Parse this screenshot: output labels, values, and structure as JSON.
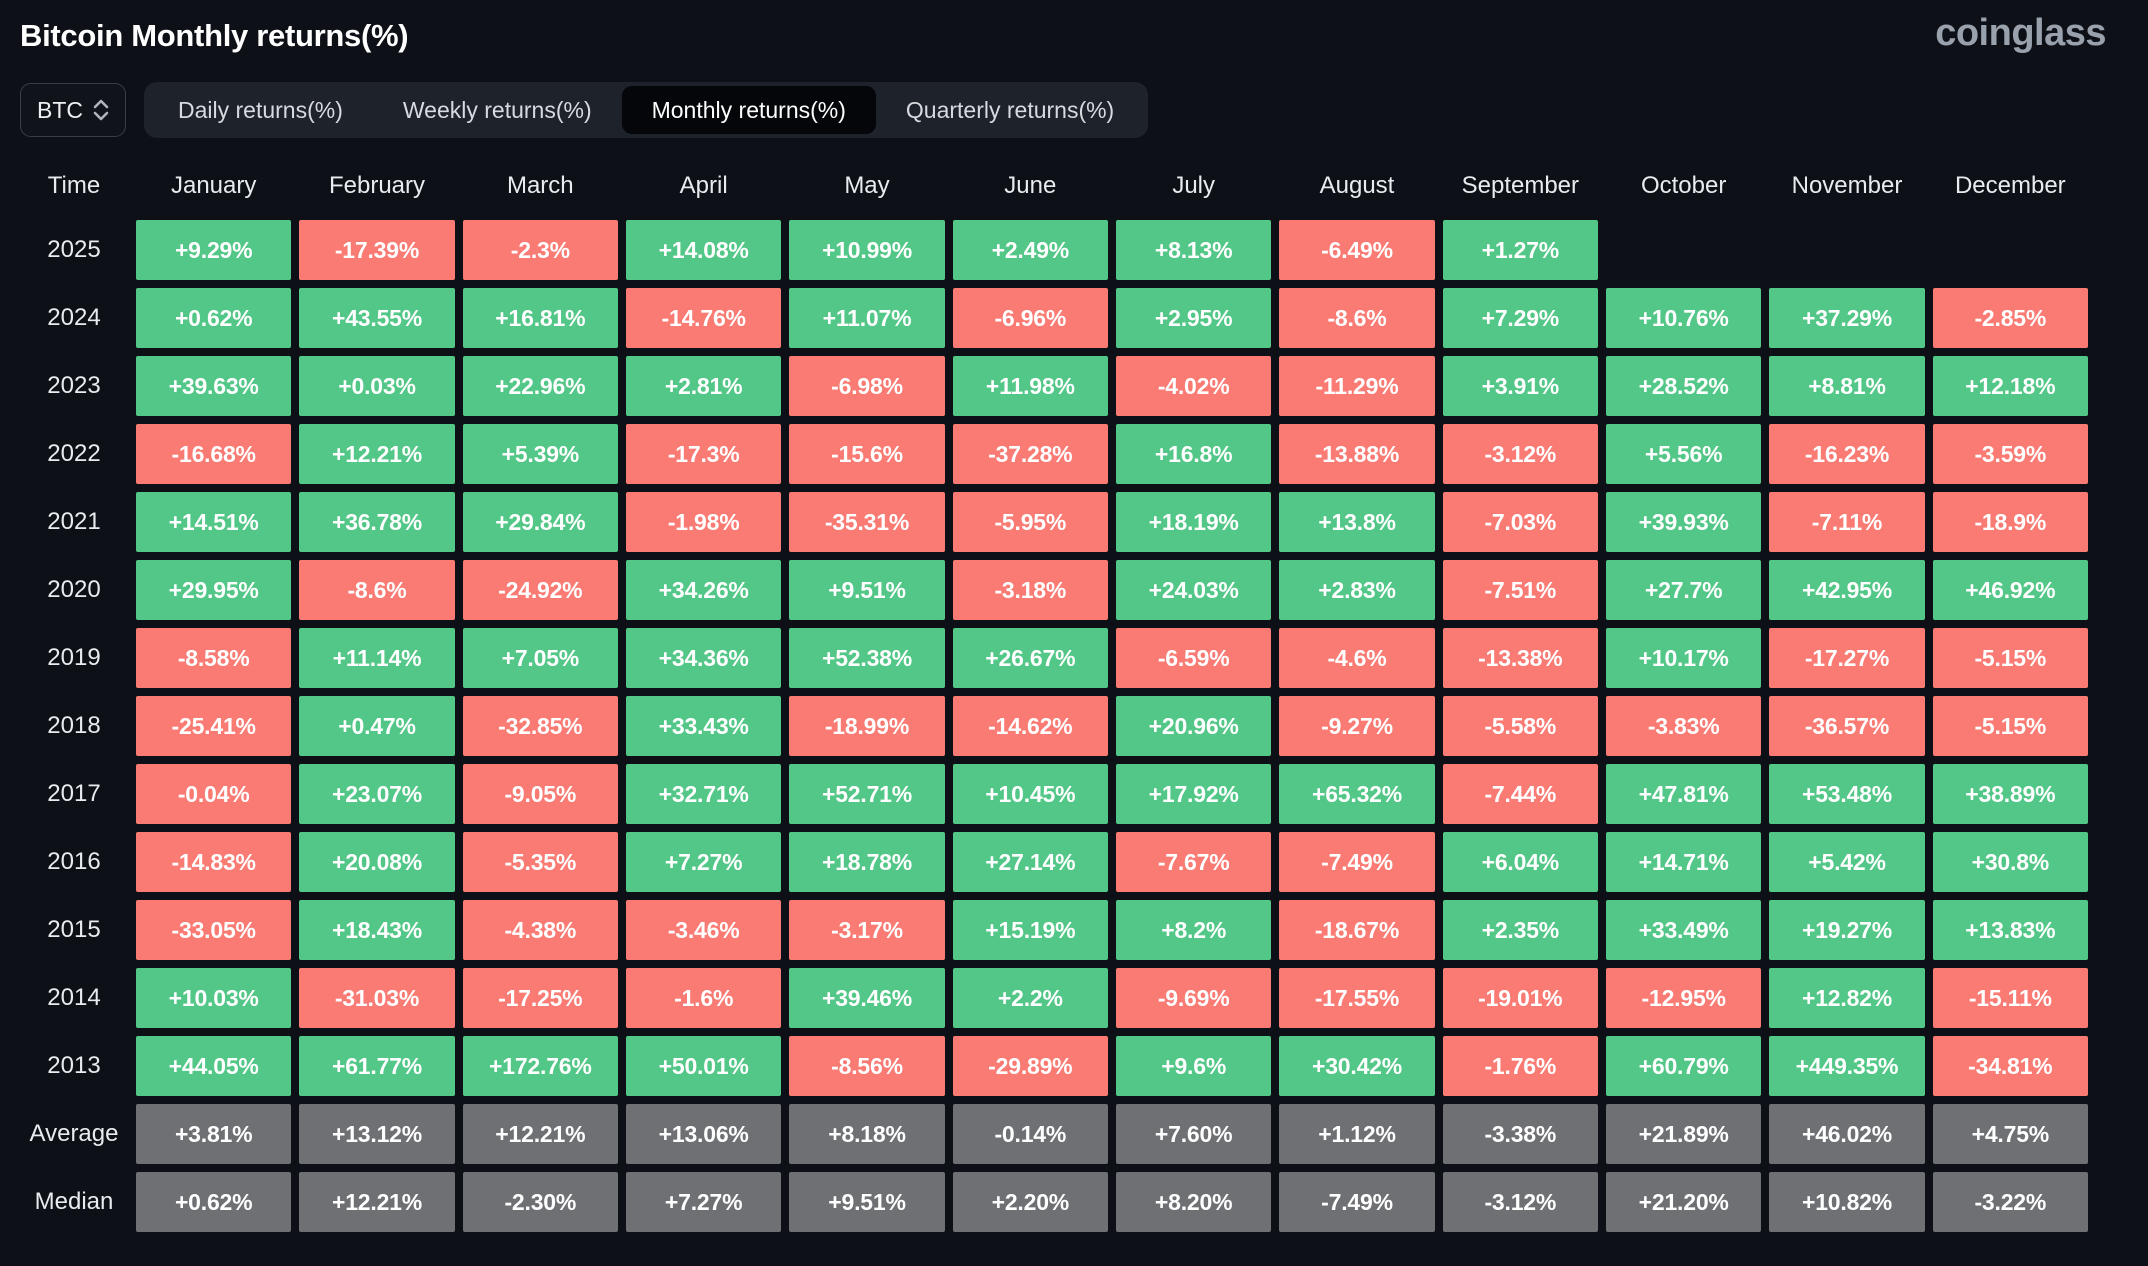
{
  "page": {
    "title": "Bitcoin Monthly returns(%)",
    "logo": "coinglass"
  },
  "controls": {
    "coin_selector": {
      "value": "BTC"
    },
    "tabs": [
      {
        "label": "Daily returns(%)",
        "active": false
      },
      {
        "label": "Weekly returns(%)",
        "active": false
      },
      {
        "label": "Monthly returns(%)",
        "active": true
      },
      {
        "label": "Quarterly returns(%)",
        "active": false
      }
    ]
  },
  "chart_data": {
    "type": "heatmap",
    "title": "Bitcoin Monthly returns(%)",
    "legend_position": "none",
    "colors": {
      "positive": "#53c787",
      "negative": "#f97b74",
      "neutral": "#6e7073",
      "background": "#0d1016"
    },
    "columns": [
      "Time",
      "January",
      "February",
      "March",
      "April",
      "May",
      "June",
      "July",
      "August",
      "September",
      "October",
      "November",
      "December"
    ],
    "rows": [
      {
        "label": "2025",
        "neutral": false,
        "values": [
          "+9.29%",
          "-17.39%",
          "-2.3%",
          "+14.08%",
          "+10.99%",
          "+2.49%",
          "+8.13%",
          "-6.49%",
          "+1.27%",
          null,
          null,
          null
        ]
      },
      {
        "label": "2024",
        "neutral": false,
        "values": [
          "+0.62%",
          "+43.55%",
          "+16.81%",
          "-14.76%",
          "+11.07%",
          "-6.96%",
          "+2.95%",
          "-8.6%",
          "+7.29%",
          "+10.76%",
          "+37.29%",
          "-2.85%"
        ]
      },
      {
        "label": "2023",
        "neutral": false,
        "values": [
          "+39.63%",
          "+0.03%",
          "+22.96%",
          "+2.81%",
          "-6.98%",
          "+11.98%",
          "-4.02%",
          "-11.29%",
          "+3.91%",
          "+28.52%",
          "+8.81%",
          "+12.18%"
        ]
      },
      {
        "label": "2022",
        "neutral": false,
        "values": [
          "-16.68%",
          "+12.21%",
          "+5.39%",
          "-17.3%",
          "-15.6%",
          "-37.28%",
          "+16.8%",
          "-13.88%",
          "-3.12%",
          "+5.56%",
          "-16.23%",
          "-3.59%"
        ]
      },
      {
        "label": "2021",
        "neutral": false,
        "values": [
          "+14.51%",
          "+36.78%",
          "+29.84%",
          "-1.98%",
          "-35.31%",
          "-5.95%",
          "+18.19%",
          "+13.8%",
          "-7.03%",
          "+39.93%",
          "-7.11%",
          "-18.9%"
        ]
      },
      {
        "label": "2020",
        "neutral": false,
        "values": [
          "+29.95%",
          "-8.6%",
          "-24.92%",
          "+34.26%",
          "+9.51%",
          "-3.18%",
          "+24.03%",
          "+2.83%",
          "-7.51%",
          "+27.7%",
          "+42.95%",
          "+46.92%"
        ]
      },
      {
        "label": "2019",
        "neutral": false,
        "values": [
          "-8.58%",
          "+11.14%",
          "+7.05%",
          "+34.36%",
          "+52.38%",
          "+26.67%",
          "-6.59%",
          "-4.6%",
          "-13.38%",
          "+10.17%",
          "-17.27%",
          "-5.15%"
        ]
      },
      {
        "label": "2018",
        "neutral": false,
        "values": [
          "-25.41%",
          "+0.47%",
          "-32.85%",
          "+33.43%",
          "-18.99%",
          "-14.62%",
          "+20.96%",
          "-9.27%",
          "-5.58%",
          "-3.83%",
          "-36.57%",
          "-5.15%"
        ]
      },
      {
        "label": "2017",
        "neutral": false,
        "values": [
          "-0.04%",
          "+23.07%",
          "-9.05%",
          "+32.71%",
          "+52.71%",
          "+10.45%",
          "+17.92%",
          "+65.32%",
          "-7.44%",
          "+47.81%",
          "+53.48%",
          "+38.89%"
        ]
      },
      {
        "label": "2016",
        "neutral": false,
        "values": [
          "-14.83%",
          "+20.08%",
          "-5.35%",
          "+7.27%",
          "+18.78%",
          "+27.14%",
          "-7.67%",
          "-7.49%",
          "+6.04%",
          "+14.71%",
          "+5.42%",
          "+30.8%"
        ]
      },
      {
        "label": "2015",
        "neutral": false,
        "values": [
          "-33.05%",
          "+18.43%",
          "-4.38%",
          "-3.46%",
          "-3.17%",
          "+15.19%",
          "+8.2%",
          "-18.67%",
          "+2.35%",
          "+33.49%",
          "+19.27%",
          "+13.83%"
        ]
      },
      {
        "label": "2014",
        "neutral": false,
        "values": [
          "+10.03%",
          "-31.03%",
          "-17.25%",
          "-1.6%",
          "+39.46%",
          "+2.2%",
          "-9.69%",
          "-17.55%",
          "-19.01%",
          "-12.95%",
          "+12.82%",
          "-15.11%"
        ]
      },
      {
        "label": "2013",
        "neutral": false,
        "values": [
          "+44.05%",
          "+61.77%",
          "+172.76%",
          "+50.01%",
          "-8.56%",
          "-29.89%",
          "+9.6%",
          "+30.42%",
          "-1.76%",
          "+60.79%",
          "+449.35%",
          "-34.81%"
        ]
      },
      {
        "label": "Average",
        "neutral": true,
        "values": [
          "+3.81%",
          "+13.12%",
          "+12.21%",
          "+13.06%",
          "+8.18%",
          "-0.14%",
          "+7.60%",
          "+1.12%",
          "-3.38%",
          "+21.89%",
          "+46.02%",
          "+4.75%"
        ]
      },
      {
        "label": "Median",
        "neutral": true,
        "values": [
          "+0.62%",
          "+12.21%",
          "-2.30%",
          "+7.27%",
          "+9.51%",
          "+2.20%",
          "+8.20%",
          "-7.49%",
          "-3.12%",
          "+21.20%",
          "+10.82%",
          "-3.22%"
        ]
      }
    ]
  }
}
